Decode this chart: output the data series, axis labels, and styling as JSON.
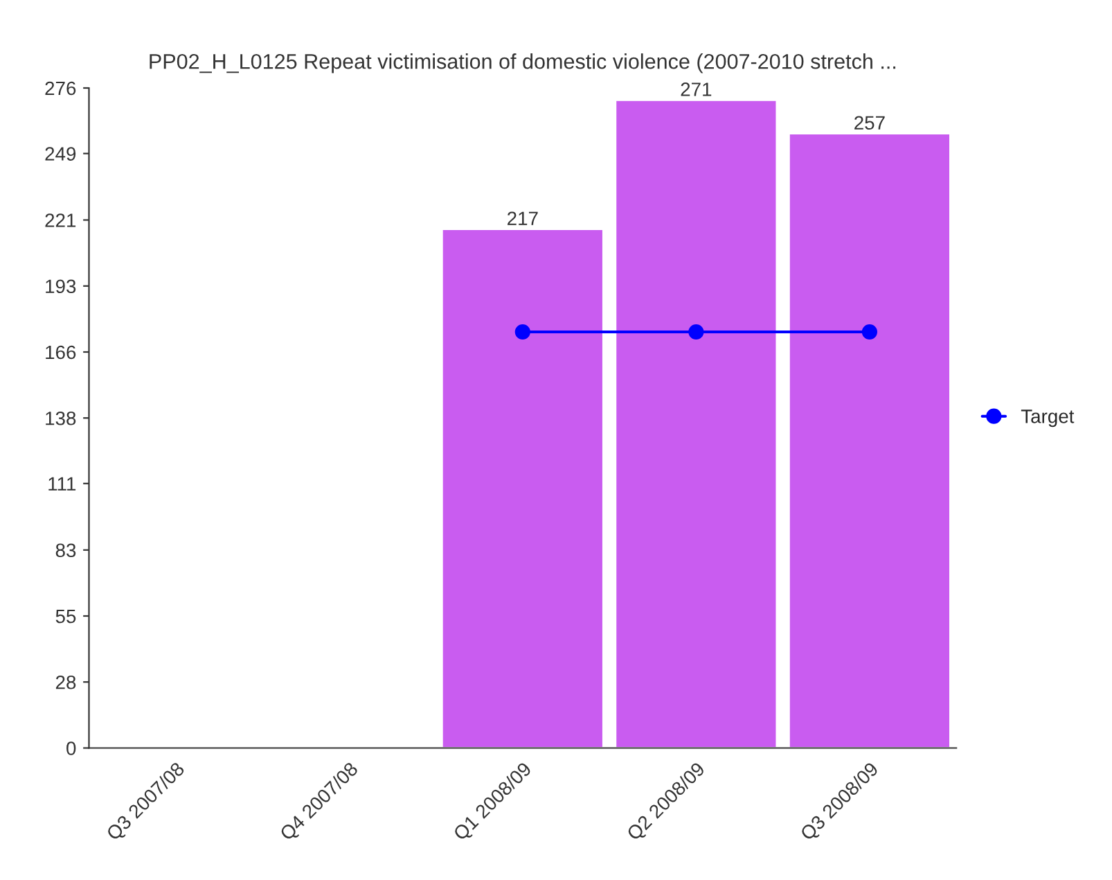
{
  "chart_data": {
    "type": "bar",
    "title": "PP02_H_L0125 Repeat victimisation of domestic violence (2007-2010 stretch ...",
    "categories": [
      "Q3 2007/08",
      "Q4 2007/08",
      "Q1 2008/09",
      "Q2 2008/09",
      "Q3 2008/09"
    ],
    "series": [
      {
        "color": "#c95cf0",
        "values": [
          null,
          null,
          217,
          271,
          257
        ],
        "value_labels": [
          null,
          null,
          "217",
          "271",
          "257"
        ]
      },
      {
        "type": "line",
        "name": "Target",
        "color": "#0000ff",
        "values": [
          null,
          null,
          174,
          174,
          174
        ],
        "marker": "circle",
        "line_style": "solid"
      }
    ],
    "ylim": [
      0,
      276
    ],
    "yticks": [
      0,
      {
        "value": 27.6,
        "label": "28"
      },
      {
        "value": 55.2,
        "label": "55"
      },
      {
        "value": 82.8,
        "label": "83"
      },
      {
        "value": 110.6,
        "label": "111"
      },
      138,
      {
        "value": 165.6,
        "label": "166"
      },
      {
        "value": 193.2,
        "label": "193"
      },
      {
        "value": 220.8,
        "label": "221"
      },
      {
        "value": 248.6,
        "label": "249"
      },
      276
    ],
    "grid": false,
    "legend": "right"
  }
}
